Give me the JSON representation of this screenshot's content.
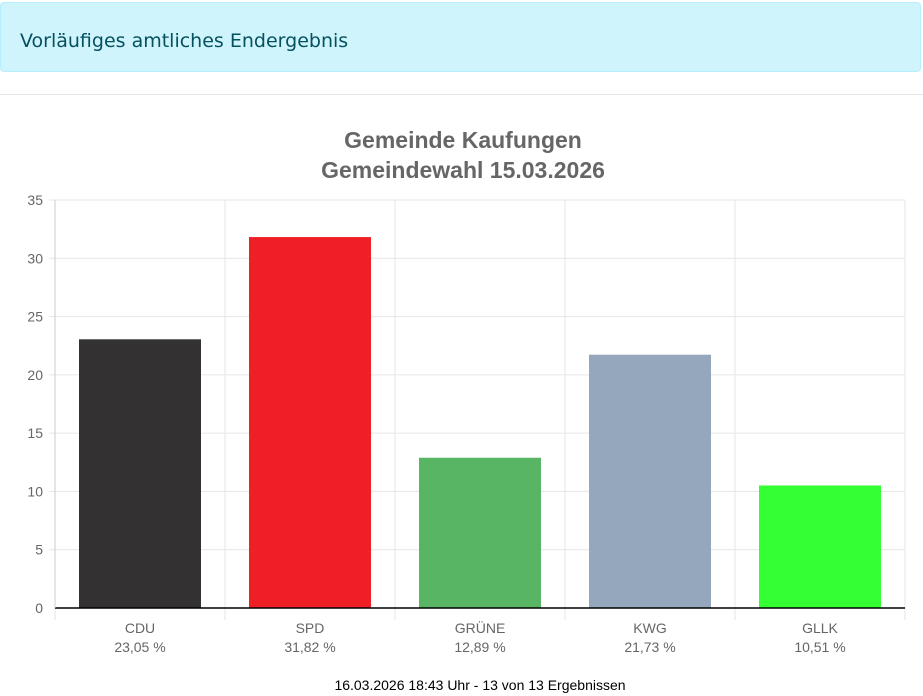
{
  "status_banner": {
    "text": "Vorläufiges amtliches Endergebnis"
  },
  "chart_data": {
    "type": "bar",
    "title_lines": [
      "Gemeinde Kaufungen",
      "Gemeindewahl 15.03.2026"
    ],
    "categories": [
      "CDU",
      "SPD",
      "GRÜNE",
      "KWG",
      "GLLK"
    ],
    "percent_labels": [
      "23,05 %",
      "31,82 %",
      "12,89 %",
      "21,73 %",
      "10,51 %"
    ],
    "values": [
      23.05,
      31.82,
      12.89,
      21.73,
      10.51
    ],
    "colors": [
      "#333132",
      "#ee1f25",
      "#57b563",
      "#94a7bc",
      "#33ff33"
    ],
    "ylim": [
      0,
      35
    ],
    "yticks": [
      0,
      5,
      10,
      15,
      20,
      25,
      30,
      35
    ],
    "grid": true,
    "legend": "none"
  },
  "footer": {
    "text": "16.03.2026 18:43 Uhr - 13 von 13 Ergebnissen"
  }
}
